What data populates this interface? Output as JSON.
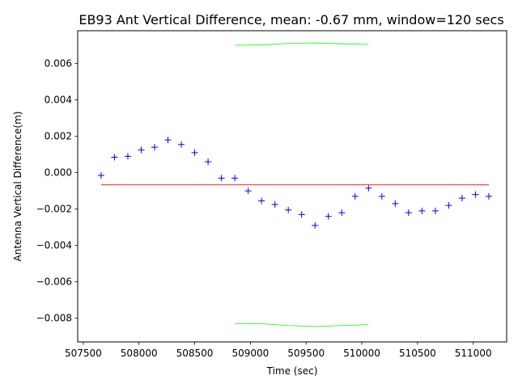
{
  "chart_data": {
    "type": "scatter",
    "title": "EB93 Ant Vertical Difference, mean: -0.67 mm, window=120 secs",
    "xlabel": "Time (sec)",
    "ylabel": "Antenna Vertical Difference(m)",
    "xlim": [
      507450,
      511300
    ],
    "ylim": [
      -0.0093,
      0.0078
    ],
    "xticks": [
      507500,
      508000,
      508500,
      509000,
      509500,
      510000,
      510500,
      511000
    ],
    "xtick_labels": [
      "507500",
      "508000",
      "508500",
      "509000",
      "509500",
      "510000",
      "510500",
      "511000"
    ],
    "yticks": [
      0.006,
      0.004,
      0.002,
      0.0,
      -0.002,
      -0.004,
      -0.006,
      -0.008
    ],
    "ytick_labels": [
      "0.006",
      "0.004",
      "0.002",
      "0.000",
      "−0.002",
      "−0.004",
      "−0.006",
      "−0.008"
    ],
    "grid": false,
    "series": [
      {
        "marker": "+",
        "color": "#0000ff",
        "x": [
          507660,
          507780,
          507900,
          508020,
          508140,
          508260,
          508380,
          508500,
          508620,
          508740,
          508860,
          508980,
          509100,
          509220,
          509340,
          509460,
          509580,
          509700,
          509820,
          509940,
          510060,
          510180,
          510300,
          510420,
          510540,
          510660,
          510780,
          510900,
          511020,
          511140
        ],
        "y": [
          -0.00015,
          0.00085,
          0.0009,
          0.00125,
          0.0014,
          0.0018,
          0.00155,
          0.0011,
          0.0006,
          -0.0003,
          -0.0003,
          -0.001,
          -0.00155,
          -0.00175,
          -0.00205,
          -0.0023,
          -0.0029,
          -0.0024,
          -0.0022,
          -0.0013,
          -0.00085,
          -0.0013,
          -0.0017,
          -0.0022,
          -0.0021,
          -0.0021,
          -0.0018,
          -0.0014,
          -0.0012,
          -0.0013
        ]
      },
      {
        "type": "line",
        "color": "#ff0000",
        "x": [
          507660,
          511140
        ],
        "y": [
          -0.00067,
          -0.00067
        ]
      },
      {
        "type": "line",
        "color": "#00ff00",
        "x": [
          508860,
          509100,
          509340,
          509580,
          509820,
          510060
        ],
        "y": [
          0.007,
          0.00702,
          0.0071,
          0.00713,
          0.00708,
          0.00705
        ]
      },
      {
        "type": "line",
        "color": "#00ff00",
        "x": [
          508860,
          509100,
          509340,
          509580,
          509820,
          510060
        ],
        "y": [
          -0.0083,
          -0.0083,
          -0.0084,
          -0.00845,
          -0.0084,
          -0.00835
        ]
      }
    ]
  }
}
